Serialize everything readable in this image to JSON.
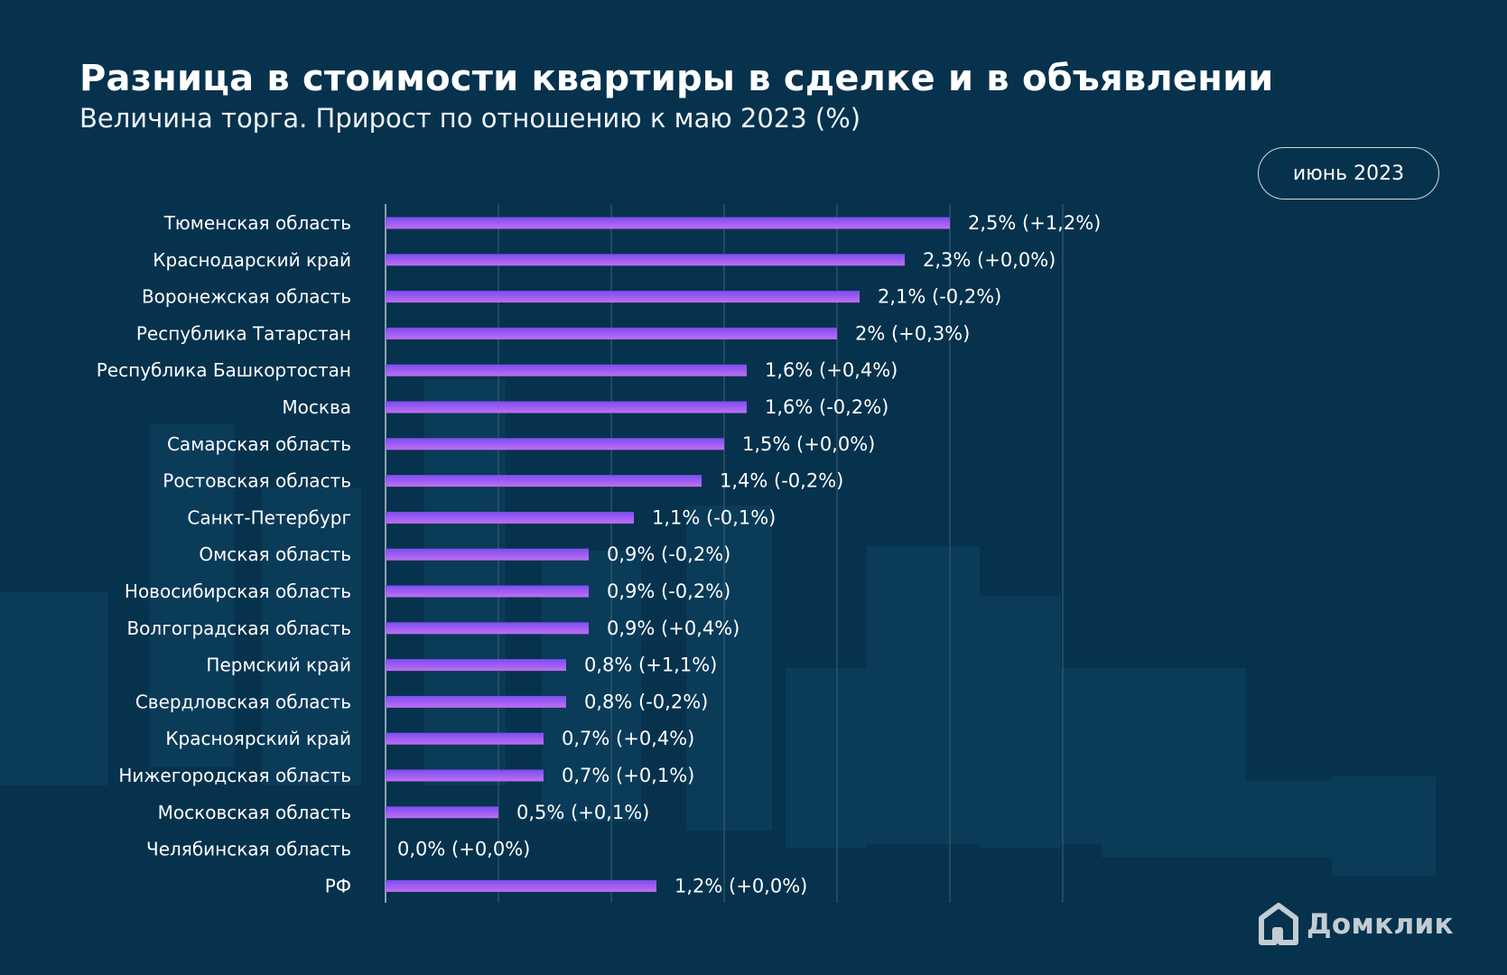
{
  "header": {
    "title": "Разница в стоимости квартиры в сделке и в объявлении",
    "subtitle": "Величина торга. Прирост по отношению к маю 2023 (%)",
    "period": "июнь 2023"
  },
  "brand": {
    "logo_text": "Домклик"
  },
  "colors": {
    "background": "#06324d",
    "bar_start": "#7a4ef0",
    "bar_end": "#c06ef2",
    "gridline": "#3a6178"
  },
  "chart_data": {
    "type": "bar",
    "orientation": "horizontal",
    "title": "Разница в стоимости квартиры в сделке и в объявлении",
    "subtitle": "Величина торга. Прирост по отношению к маю 2023 (%)",
    "categories": [
      "Тюменская область",
      "Краснодарский край",
      "Воронежская область",
      "Республика Татарстан",
      "Республика Башкортостан",
      "Москва",
      "Самарская область",
      "Ростовская область",
      "Санкт-Петербург",
      "Омская область",
      "Новосибирская область",
      "Волгоградская область",
      "Пермский край",
      "Свердловская область",
      "Красноярский край",
      "Нижегородская область",
      "Московская область",
      "Челябинская область",
      "РФ"
    ],
    "series": [
      {
        "values": [
          2.5,
          2.3,
          2.1,
          2.0,
          1.6,
          1.6,
          1.5,
          1.4,
          1.1,
          0.9,
          0.9,
          0.9,
          0.8,
          0.8,
          0.7,
          0.7,
          0.5,
          0.0,
          1.2
        ]
      }
    ],
    "data_labels": [
      "2,5% (+1,2%)",
      "2,3% (+0,0%)",
      "2,1% (-0,2%)",
      "2% (+0,3%)",
      "1,6% (+0,4%)",
      "1,6% (-0,2%)",
      "1,5% (+0,0%)",
      "1,4% (-0,2%)",
      "1,1% (-0,1%)",
      "0,9% (-0,2%)",
      "0,9% (-0,2%)",
      "0,9% (+0,4%)",
      "0,8% (+1,1%)",
      "0,8% (-0,2%)",
      "0,7% (+0,4%)",
      "0,7% (+0,1%)",
      "0,5% (+0,1%)",
      "0,0% (+0,0%)",
      "1,2% (+0,0%)"
    ],
    "change_vs_may_2023": [
      1.2,
      0.0,
      -0.2,
      0.3,
      0.4,
      -0.2,
      0.0,
      -0.2,
      -0.1,
      -0.2,
      -0.2,
      0.4,
      1.1,
      -0.2,
      0.4,
      0.1,
      0.1,
      0.0,
      0.0
    ],
    "xlim": [
      0,
      3.0
    ],
    "grid": true,
    "gridline_step": 0.5,
    "tick_labels_visible": false,
    "legend": "none"
  }
}
